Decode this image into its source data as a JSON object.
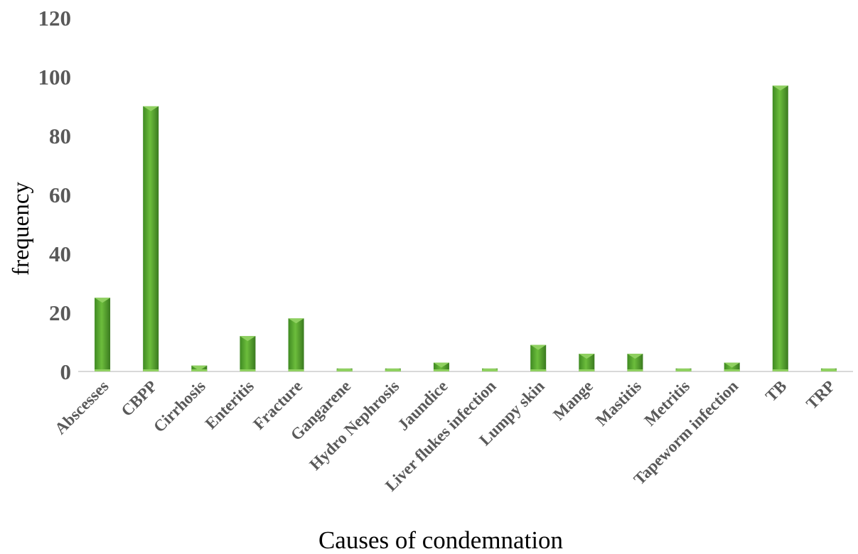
{
  "chart_data": {
    "type": "bar",
    "title": "",
    "xlabel": "Causes of condemnation",
    "ylabel": "frequency",
    "ylim": [
      0,
      120
    ],
    "yticks": [
      0,
      20,
      40,
      60,
      80,
      100,
      120
    ],
    "grid": false,
    "legend": "none",
    "categories": [
      "Abscesses",
      "CBPP",
      "Cirrhosis",
      "Enteritis",
      "Fracture",
      "Gangarene",
      "Hydro Nephrosis",
      "Jaundice",
      "Liver flukes infection",
      "Lumpy skin",
      "Mange",
      "Mastitis",
      "Metritis",
      "Tapeworm infection",
      "TB",
      "TRP"
    ],
    "values": [
      25,
      90,
      2,
      12,
      18,
      1,
      1,
      3,
      1,
      9,
      6,
      6,
      1,
      3,
      97,
      1
    ],
    "colors": {
      "bar": "#4e9a2c",
      "bar_light": "#8fd060",
      "bar_dark": "#3d7a22",
      "axis": "#d9d9d9",
      "tick_text": "#595959"
    }
  }
}
